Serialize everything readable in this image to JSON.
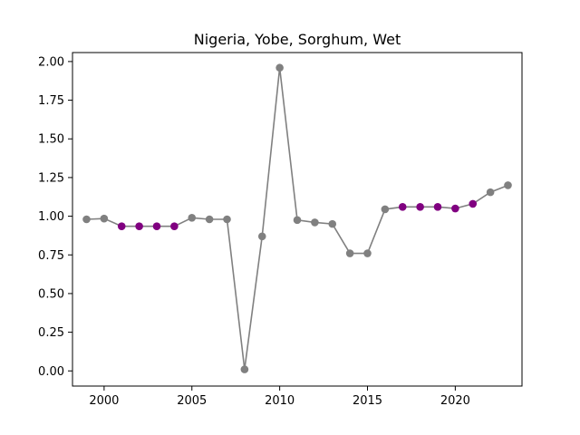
{
  "chart_data": {
    "type": "line",
    "title": "Nigeria, Yobe, Sorghum, Wet",
    "xlabel": "",
    "ylabel": "",
    "xlim": [
      1998.2,
      2023.8
    ],
    "ylim": [
      -0.098,
      2.058
    ],
    "x_ticks": [
      2000,
      2005,
      2010,
      2015,
      2020
    ],
    "y_ticks": [
      0.0,
      0.25,
      0.5,
      0.75,
      1.0,
      1.25,
      1.5,
      1.75,
      2.0
    ],
    "y_tick_labels": [
      "0.00",
      "0.25",
      "0.50",
      "0.75",
      "1.00",
      "1.25",
      "1.50",
      "1.75",
      "2.00"
    ],
    "grid": false,
    "colors": {
      "line": "#808080",
      "point_default": "#808080",
      "point_highlight": "#800080"
    },
    "series": [
      {
        "x": [
          1999,
          2000,
          2001,
          2002,
          2003,
          2004,
          2005,
          2006,
          2007,
          2008,
          2009,
          2010,
          2011,
          2012,
          2013,
          2014,
          2015,
          2016,
          2017,
          2018,
          2019,
          2020,
          2021,
          2022,
          2023
        ],
        "y": [
          0.98,
          0.985,
          0.935,
          0.935,
          0.935,
          0.935,
          0.99,
          0.98,
          0.98,
          0.01,
          0.87,
          1.96,
          0.975,
          0.96,
          0.95,
          0.76,
          0.76,
          1.045,
          1.06,
          1.06,
          1.06,
          1.05,
          1.08,
          1.155,
          1.2
        ],
        "highlight": [
          false,
          false,
          true,
          true,
          true,
          true,
          false,
          false,
          false,
          false,
          false,
          false,
          false,
          false,
          false,
          false,
          false,
          false,
          true,
          true,
          true,
          true,
          true,
          false,
          false
        ]
      }
    ]
  }
}
